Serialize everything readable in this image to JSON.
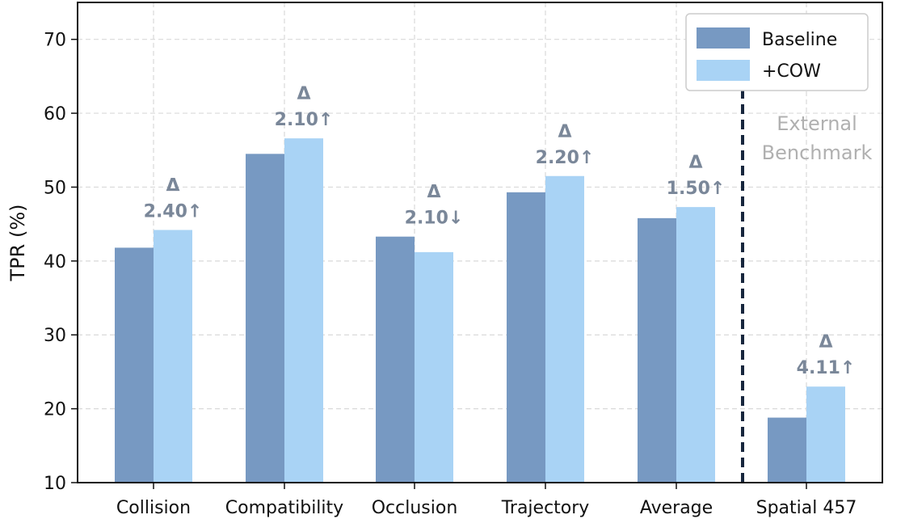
{
  "chart_data": {
    "type": "bar",
    "ylabel": "TPR (%)",
    "xlabel": "",
    "ylim": [
      10,
      75
    ],
    "yticks": [
      10,
      20,
      30,
      40,
      50,
      60,
      70
    ],
    "grid": true,
    "legend_position": "top-right",
    "categories": [
      "Collision",
      "Compatibility",
      "Occlusion",
      "Trajectory",
      "Average",
      "Spatial 457"
    ],
    "series": [
      {
        "name": "Baseline",
        "color": "#7799c2",
        "values": [
          41.8,
          54.5,
          43.3,
          49.3,
          45.8,
          18.8
        ]
      },
      {
        "name": "+COW",
        "color": "#a9d3f5",
        "values": [
          44.2,
          56.6,
          41.2,
          51.5,
          47.3,
          23.0
        ]
      }
    ],
    "delta_labels": [
      {
        "symbol": "Δ",
        "value": "2.40↑"
      },
      {
        "symbol": "Δ",
        "value": "2.10↑"
      },
      {
        "symbol": "Δ",
        "value": "2.10↓"
      },
      {
        "symbol": "Δ",
        "value": "2.20↑"
      },
      {
        "symbol": "Δ",
        "value": "1.50↑"
      },
      {
        "symbol": "Δ",
        "value": "4.11↑"
      }
    ],
    "annotation": {
      "line1": "External",
      "line2": "Benchmark"
    },
    "separator_color": "#17263d"
  }
}
